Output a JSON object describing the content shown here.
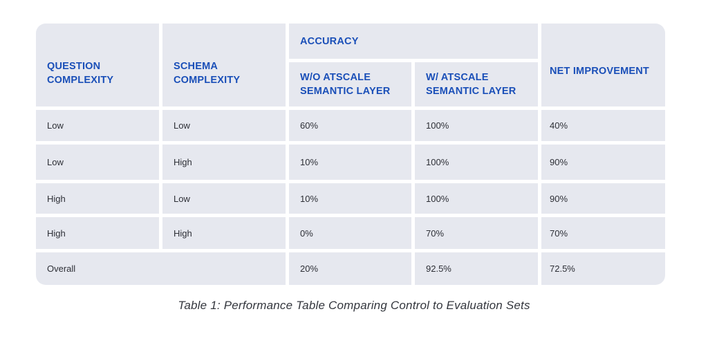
{
  "table": {
    "headers": {
      "question_complexity": [
        "QUESTION",
        "COMPLEXITY"
      ],
      "schema_complexity": [
        "SCHEMA",
        "COMPLEXITY"
      ],
      "accuracy": "ACCURACY",
      "without_semantic": [
        "W/O ATSCALE",
        "SEMANTIC LAYER"
      ],
      "with_semantic": [
        "W/ ATSCALE",
        "SEMANTIC LAYER"
      ],
      "net_improvement": "NET IMPROVEMENT"
    },
    "rows": [
      {
        "question": "Low",
        "schema": "Low",
        "without": "60%",
        "with": "100%",
        "net": "40%"
      },
      {
        "question": "Low",
        "schema": "High",
        "without": "10%",
        "with": "100%",
        "net": "90%"
      },
      {
        "question": "High",
        "schema": "Low",
        "without": "10%",
        "with": "100%",
        "net": "90%"
      },
      {
        "question": "High",
        "schema": "High",
        "without": "0%",
        "with": "70%",
        "net": "70%"
      }
    ],
    "overall": {
      "label": "Overall",
      "without": "20%",
      "with": "92.5%",
      "net": "72.5%"
    }
  },
  "caption": "Table 1: Performance Table Comparing Control to Evaluation Sets",
  "colors": {
    "header_text": "#1a4fb8",
    "cell_background": "#e6e8ef",
    "body_text": "#2d2f36"
  }
}
